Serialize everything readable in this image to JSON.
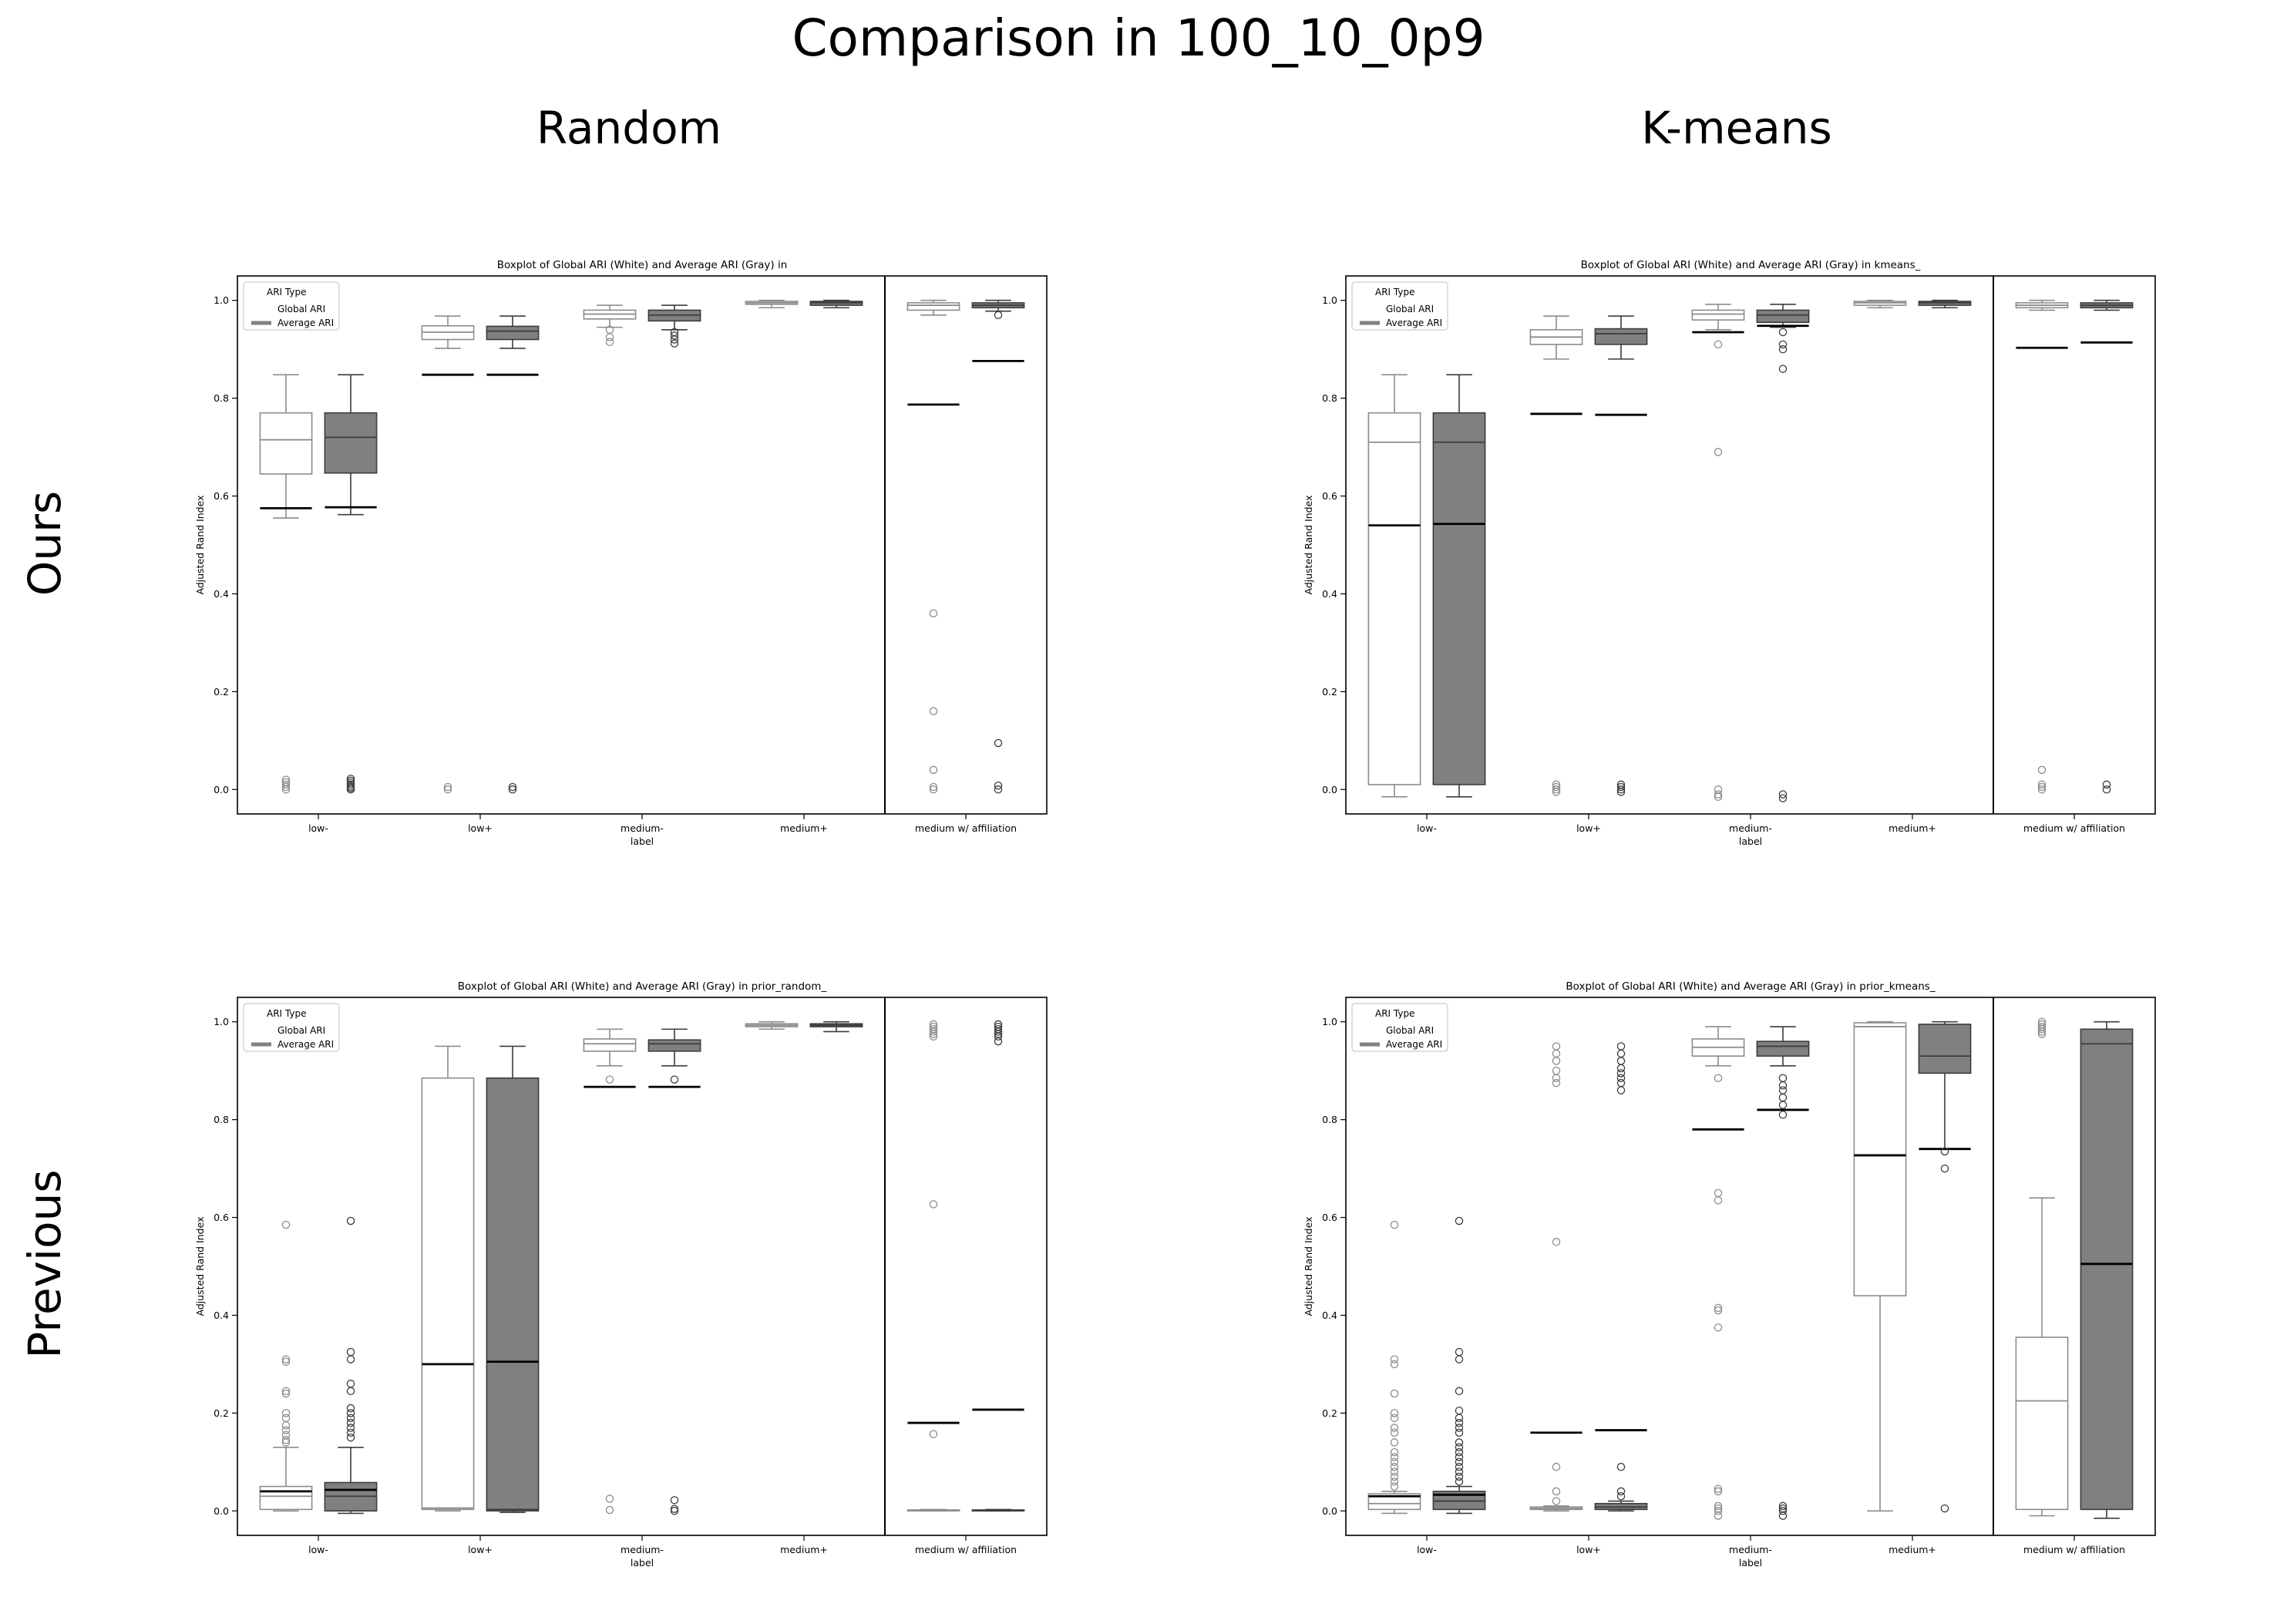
{
  "figure": {
    "title": "Comparison in 100_10_0p9",
    "col_titles": [
      "Random",
      "K-means"
    ],
    "row_titles": [
      "Ours",
      "Previous"
    ]
  },
  "colors": {
    "global_fill": "#ffffff",
    "global_stroke": "#8c8c8c",
    "average_fill": "#808080",
    "average_stroke": "#3c3c3c",
    "mean_line": "#000000"
  },
  "chart_data": [
    {
      "type": "box",
      "title": "Boxplot of Global ARI (White) and Average ARI (Gray) in",
      "xlabel": "label",
      "ylabel": "Adjusted Rand Index",
      "categories": [
        "low-",
        "low+",
        "medium-",
        "medium+",
        "medium w/ affiliation"
      ],
      "divider_before_category": 4,
      "ylim": [
        -0.05,
        1.05
      ],
      "yticks": [
        0.0,
        0.2,
        0.4,
        0.6,
        0.8,
        1.0
      ],
      "ytick_labels": [
        "0.0",
        "0.2",
        "0.4",
        "0.6",
        "0.8",
        "1.0"
      ],
      "legend": {
        "title": "ARI Type",
        "entries": [
          "Global ARI",
          "Average ARI"
        ],
        "position": "top-left"
      },
      "series": [
        {
          "name": "Global ARI",
          "boxes": [
            {
              "whislo": 0.555,
              "q1": 0.645,
              "med": 0.715,
              "q3": 0.77,
              "whishi": 0.848,
              "mean": 0.575,
              "fliers": [
                0.0,
                0.005,
                0.01,
                0.015,
                0.02
              ]
            },
            {
              "whislo": 0.902,
              "q1": 0.92,
              "med": 0.935,
              "q3": 0.948,
              "whishi": 0.968,
              "mean": 0.848,
              "fliers": [
                0.0,
                0.005
              ]
            },
            {
              "whislo": 0.945,
              "q1": 0.962,
              "med": 0.972,
              "q3": 0.98,
              "whishi": 0.99,
              "mean": null,
              "fliers": [
                0.915,
                0.925,
                0.94
              ]
            },
            {
              "whislo": 0.985,
              "q1": 0.992,
              "med": 0.995,
              "q3": 0.998,
              "whishi": 1.0,
              "mean": null,
              "fliers": []
            },
            {
              "whislo": 0.97,
              "q1": 0.98,
              "med": 0.99,
              "q3": 0.995,
              "whishi": 1.0,
              "mean": 0.787,
              "fliers": [
                0.36,
                0.16,
                0.04,
                0.005,
                0.0
              ]
            }
          ]
        },
        {
          "name": "Average ARI",
          "boxes": [
            {
              "whislo": 0.562,
              "q1": 0.647,
              "med": 0.72,
              "q3": 0.77,
              "whishi": 0.848,
              "mean": 0.577,
              "fliers": [
                0.0,
                0.003,
                0.006,
                0.01,
                0.014,
                0.018,
                0.022
              ]
            },
            {
              "whislo": 0.902,
              "q1": 0.92,
              "med": 0.937,
              "q3": 0.947,
              "whishi": 0.968,
              "mean": 0.848,
              "fliers": [
                0.0,
                0.005
              ]
            },
            {
              "whislo": 0.94,
              "q1": 0.958,
              "med": 0.97,
              "q3": 0.98,
              "whishi": 0.99,
              "mean": null,
              "fliers": [
                0.912,
                0.92,
                0.928,
                0.935
              ]
            },
            {
              "whislo": 0.985,
              "q1": 0.99,
              "med": 0.995,
              "q3": 0.998,
              "whishi": 1.0,
              "mean": null,
              "fliers": []
            },
            {
              "whislo": 0.978,
              "q1": 0.985,
              "med": 0.99,
              "q3": 0.995,
              "whishi": 1.0,
              "mean": 0.876,
              "fliers": [
                0.97,
                0.095,
                0.008,
                0.0
              ]
            }
          ]
        }
      ]
    },
    {
      "type": "box",
      "title": "Boxplot of Global ARI (White) and Average ARI (Gray) in kmeans_",
      "xlabel": "label",
      "ylabel": "Adjusted Rand Index",
      "categories": [
        "low-",
        "low+",
        "medium-",
        "medium+",
        "medium w/ affiliation"
      ],
      "divider_before_category": 4,
      "ylim": [
        -0.05,
        1.05
      ],
      "yticks": [
        0.0,
        0.2,
        0.4,
        0.6,
        0.8,
        1.0
      ],
      "ytick_labels": [
        "0.0",
        "0.2",
        "0.4",
        "0.6",
        "0.8",
        "1.0"
      ],
      "legend": {
        "title": "ARI Type",
        "entries": [
          "Global ARI",
          "Average ARI"
        ],
        "position": "top-left"
      },
      "series": [
        {
          "name": "Global ARI",
          "boxes": [
            {
              "whislo": -0.015,
              "q1": 0.01,
              "med": 0.71,
              "q3": 0.77,
              "whishi": 0.848,
              "mean": 0.54,
              "fliers": []
            },
            {
              "whislo": 0.88,
              "q1": 0.91,
              "med": 0.925,
              "q3": 0.94,
              "whishi": 0.968,
              "mean": 0.768,
              "fliers": [
                0.0,
                0.005,
                0.01,
                -0.005
              ]
            },
            {
              "whislo": 0.94,
              "q1": 0.96,
              "med": 0.972,
              "q3": 0.98,
              "whishi": 0.992,
              "mean": 0.935,
              "fliers": [
                0.91,
                0.69,
                0.0,
                -0.01,
                -0.015
              ]
            },
            {
              "whislo": 0.985,
              "q1": 0.99,
              "med": 0.995,
              "q3": 0.998,
              "whishi": 1.0,
              "mean": null,
              "fliers": []
            },
            {
              "whislo": 0.98,
              "q1": 0.985,
              "med": 0.99,
              "q3": 0.995,
              "whishi": 1.0,
              "mean": 0.903,
              "fliers": [
                0.04,
                0.01,
                0.005,
                0.0
              ]
            }
          ]
        },
        {
          "name": "Average ARI",
          "boxes": [
            {
              "whislo": -0.015,
              "q1": 0.01,
              "med": 0.71,
              "q3": 0.77,
              "whishi": 0.848,
              "mean": 0.543,
              "fliers": []
            },
            {
              "whislo": 0.88,
              "q1": 0.91,
              "med": 0.932,
              "q3": 0.942,
              "whishi": 0.968,
              "mean": 0.766,
              "fliers": [
                0.01,
                0.005,
                0.0,
                -0.005
              ]
            },
            {
              "whislo": 0.945,
              "q1": 0.955,
              "med": 0.97,
              "q3": 0.98,
              "whishi": 0.992,
              "mean": 0.948,
              "fliers": [
                0.935,
                0.91,
                0.9,
                0.86,
                -0.01,
                -0.018
              ]
            },
            {
              "whislo": 0.985,
              "q1": 0.99,
              "med": 0.995,
              "q3": 0.998,
              "whishi": 1.0,
              "mean": null,
              "fliers": []
            },
            {
              "whislo": 0.98,
              "q1": 0.985,
              "med": 0.99,
              "q3": 0.995,
              "whishi": 1.0,
              "mean": 0.914,
              "fliers": [
                0.01,
                0.0
              ]
            }
          ]
        }
      ]
    },
    {
      "type": "box",
      "title": "Boxplot of Global ARI (White) and Average ARI (Gray) in prior_random_",
      "xlabel": "label",
      "ylabel": "Adjusted Rand Index",
      "categories": [
        "low-",
        "low+",
        "medium-",
        "medium+",
        "medium w/ affiliation"
      ],
      "divider_before_category": 4,
      "ylim": [
        -0.05,
        1.05
      ],
      "yticks": [
        0.0,
        0.2,
        0.4,
        0.6,
        0.8,
        1.0
      ],
      "ytick_labels": [
        "0.0",
        "0.2",
        "0.4",
        "0.6",
        "0.8",
        "1.0"
      ],
      "legend": {
        "title": "ARI Type",
        "entries": [
          "Global ARI",
          "Average ARI"
        ],
        "position": "top-left"
      },
      "series": [
        {
          "name": "Global ARI",
          "boxes": [
            {
              "whislo": 0.0,
              "q1": 0.003,
              "med": 0.03,
              "q3": 0.05,
              "whishi": 0.13,
              "mean": 0.04,
              "fliers": [
                0.585,
                0.31,
                0.305,
                0.245,
                0.24,
                0.2,
                0.19,
                0.175,
                0.165,
                0.155,
                0.145,
                0.14
              ]
            },
            {
              "whislo": 0.0,
              "q1": 0.003,
              "med": 0.006,
              "q3": 0.885,
              "whishi": 0.95,
              "mean": 0.3,
              "fliers": []
            },
            {
              "whislo": 0.91,
              "q1": 0.94,
              "med": 0.955,
              "q3": 0.965,
              "whishi": 0.985,
              "mean": 0.867,
              "fliers": [
                0.882,
                0.025,
                0.002
              ]
            },
            {
              "whislo": 0.985,
              "q1": 0.99,
              "med": 0.993,
              "q3": 0.996,
              "whishi": 1.0,
              "mean": null,
              "fliers": []
            },
            {
              "whislo": 0.0,
              "q1": 0.0,
              "med": 0.001,
              "q3": 0.002,
              "whishi": 0.003,
              "mean": 0.18,
              "fliers": [
                0.995,
                0.99,
                0.985,
                0.98,
                0.975,
                0.97,
                0.627,
                0.157
              ]
            }
          ]
        },
        {
          "name": "Average ARI",
          "boxes": [
            {
              "whislo": -0.005,
              "q1": 0.0,
              "med": 0.03,
              "q3": 0.058,
              "whishi": 0.13,
              "mean": 0.043,
              "fliers": [
                0.593,
                0.325,
                0.31,
                0.26,
                0.245,
                0.21,
                0.2,
                0.19,
                0.18,
                0.17,
                0.16,
                0.15
              ]
            },
            {
              "whislo": -0.003,
              "q1": 0.0,
              "med": 0.003,
              "q3": 0.885,
              "whishi": 0.95,
              "mean": 0.305,
              "fliers": []
            },
            {
              "whislo": 0.91,
              "q1": 0.94,
              "med": 0.955,
              "q3": 0.963,
              "whishi": 0.985,
              "mean": 0.867,
              "fliers": [
                0.882,
                0.022,
                0.004,
                0.0
              ]
            },
            {
              "whislo": 0.98,
              "q1": 0.99,
              "med": 0.993,
              "q3": 0.996,
              "whishi": 1.0,
              "mean": null,
              "fliers": []
            },
            {
              "whislo": 0.0,
              "q1": 0.0,
              "med": 0.001,
              "q3": 0.002,
              "whishi": 0.003,
              "mean": 0.207,
              "fliers": [
                0.995,
                0.99,
                0.985,
                0.98,
                0.975,
                0.97,
                0.96
              ]
            }
          ]
        }
      ]
    },
    {
      "type": "box",
      "title": "Boxplot of Global ARI (White) and Average ARI (Gray) in prior_kmeans_",
      "xlabel": "label",
      "ylabel": "Adjusted Rand Index",
      "categories": [
        "low-",
        "low+",
        "medium-",
        "medium+",
        "medium w/ affiliation"
      ],
      "divider_before_category": 4,
      "ylim": [
        -0.05,
        1.05
      ],
      "yticks": [
        0.0,
        0.2,
        0.4,
        0.6,
        0.8,
        1.0
      ],
      "ytick_labels": [
        "0.0",
        "0.2",
        "0.4",
        "0.6",
        "0.8",
        "1.0"
      ],
      "legend": {
        "title": "ARI Type",
        "entries": [
          "Global ARI",
          "Average ARI"
        ],
        "position": "top-left"
      },
      "series": [
        {
          "name": "Global ARI",
          "boxes": [
            {
              "whislo": -0.005,
              "q1": 0.003,
              "med": 0.015,
              "q3": 0.035,
              "whishi": 0.04,
              "mean": 0.03,
              "fliers": [
                0.585,
                0.31,
                0.3,
                0.24,
                0.2,
                0.19,
                0.17,
                0.16,
                0.14,
                0.12,
                0.11,
                0.1,
                0.09,
                0.08,
                0.07,
                0.06,
                0.05
              ]
            },
            {
              "whislo": 0.0,
              "q1": 0.003,
              "med": 0.005,
              "q3": 0.008,
              "whishi": 0.01,
              "mean": 0.16,
              "fliers": [
                0.95,
                0.935,
                0.92,
                0.9,
                0.885,
                0.875,
                0.55,
                0.09,
                0.04,
                0.02
              ]
            },
            {
              "whislo": 0.91,
              "q1": 0.93,
              "med": 0.948,
              "q3": 0.965,
              "whishi": 0.99,
              "mean": 0.78,
              "fliers": [
                0.885,
                0.65,
                0.635,
                0.415,
                0.41,
                0.375,
                0.045,
                0.04,
                0.01,
                0.005,
                0.0,
                -0.01
              ]
            },
            {
              "whislo": 0.0,
              "q1": 0.44,
              "med": 0.99,
              "q3": 0.998,
              "whishi": 1.0,
              "mean": 0.727,
              "fliers": []
            },
            {
              "whislo": -0.01,
              "q1": 0.003,
              "med": 0.225,
              "q3": 0.355,
              "whishi": 0.64,
              "mean": null,
              "fliers": [
                1.0,
                0.995,
                0.99,
                0.985,
                0.98,
                0.975
              ]
            }
          ]
        },
        {
          "name": "Average ARI",
          "boxes": [
            {
              "whislo": -0.005,
              "q1": 0.003,
              "med": 0.02,
              "q3": 0.04,
              "whishi": 0.05,
              "mean": 0.033,
              "fliers": [
                0.593,
                0.325,
                0.31,
                0.245,
                0.205,
                0.19,
                0.18,
                0.17,
                0.16,
                0.14,
                0.13,
                0.12,
                0.11,
                0.1,
                0.09,
                0.08,
                0.07,
                0.06
              ]
            },
            {
              "whislo": 0.0,
              "q1": 0.003,
              "med": 0.008,
              "q3": 0.015,
              "whishi": 0.02,
              "mean": 0.165,
              "fliers": [
                0.95,
                0.935,
                0.92,
                0.905,
                0.895,
                0.885,
                0.875,
                0.86,
                0.09,
                0.04,
                0.03
              ]
            },
            {
              "whislo": 0.91,
              "q1": 0.93,
              "med": 0.95,
              "q3": 0.96,
              "whishi": 0.99,
              "mean": 0.82,
              "fliers": [
                0.885,
                0.87,
                0.86,
                0.845,
                0.83,
                0.81,
                0.01,
                0.005,
                0.0,
                -0.01
              ]
            },
            {
              "whislo": 0.74,
              "q1": 0.895,
              "med": 0.93,
              "q3": 0.995,
              "whishi": 1.0,
              "mean": 0.74,
              "fliers": [
                0.735,
                0.7,
                0.005
              ]
            },
            {
              "whislo": -0.015,
              "q1": 0.003,
              "med": 0.955,
              "q3": 0.985,
              "whishi": 1.0,
              "mean": 0.505,
              "fliers": []
            }
          ]
        }
      ]
    }
  ]
}
